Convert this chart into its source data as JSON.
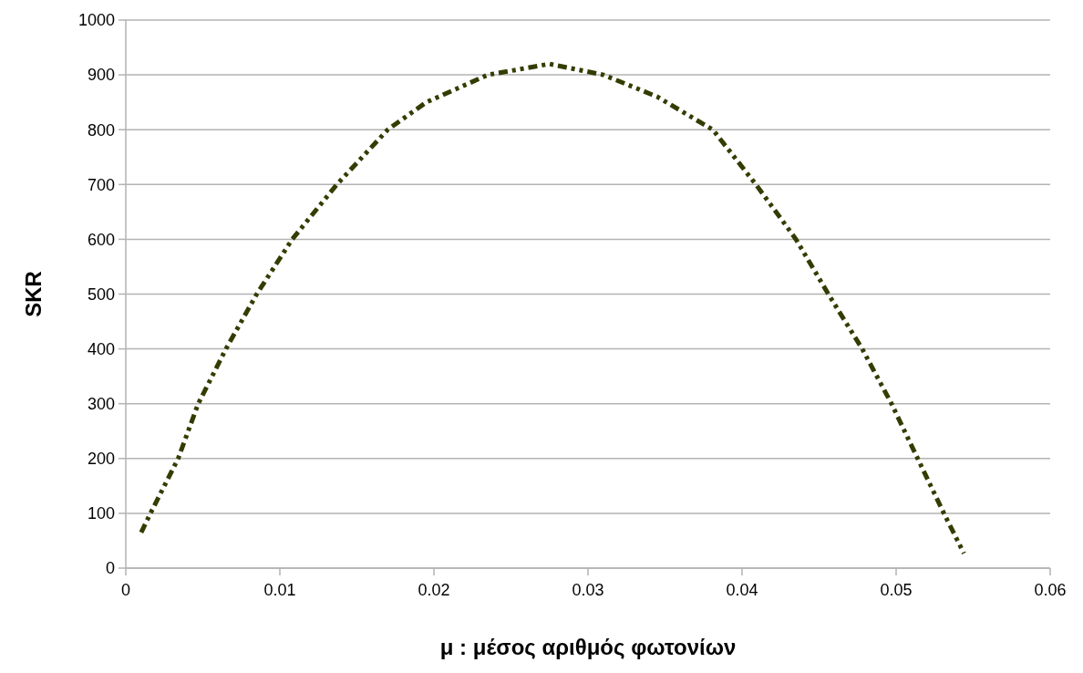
{
  "chart_data": {
    "type": "line",
    "xlabel": "μ : μέσος αριθμός φωτονίων",
    "ylabel": "SKR",
    "xlim": [
      0,
      0.06
    ],
    "xticks": [
      0,
      0.01,
      0.02,
      0.03,
      0.04,
      0.05,
      0.06
    ],
    "ylim": [
      0,
      1000
    ],
    "yticks": [
      0,
      100,
      200,
      300,
      400,
      500,
      600,
      700,
      800,
      900,
      1000
    ],
    "grid": "y",
    "line_style": "dashed",
    "marker": "none",
    "series": [
      {
        "color": "#333d00",
        "x": [
          0.001,
          0.0016,
          0.0034,
          0.0047,
          0.0065,
          0.0085,
          0.0108,
          0.0137,
          0.017,
          0.0195,
          0.0235,
          0.0275,
          0.031,
          0.0345,
          0.0381,
          0.0409,
          0.0435,
          0.0456,
          0.0478,
          0.0497,
          0.0514,
          0.0531,
          0.0544
        ],
        "values": [
          65,
          100,
          200,
          300,
          400,
          500,
          600,
          700,
          800,
          850,
          900,
          920,
          900,
          860,
          800,
          700,
          600,
          500,
          400,
          300,
          200,
          100,
          27
        ]
      }
    ]
  }
}
